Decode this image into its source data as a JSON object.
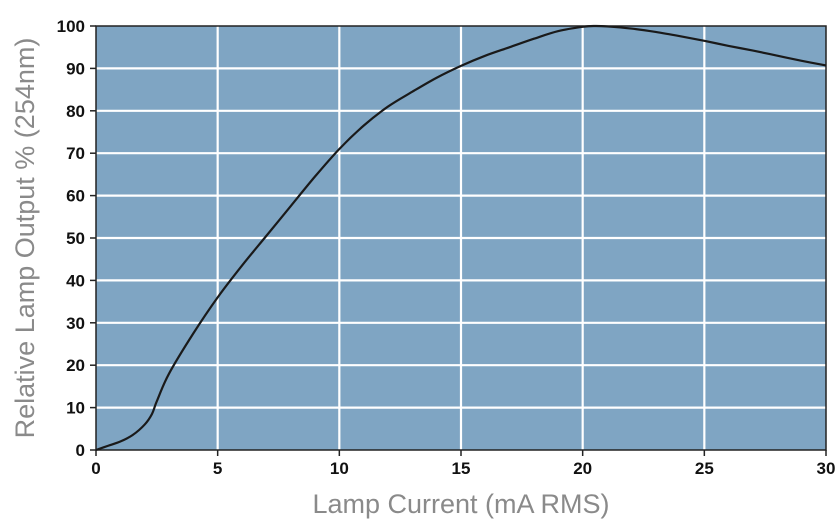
{
  "chart_data": {
    "type": "line",
    "title": "",
    "xlabel": "Lamp Current (mA RMS)",
    "ylabel": "Relative Lamp Output % (254nm)",
    "xlim": [
      0,
      30
    ],
    "ylim": [
      0,
      100
    ],
    "xticks": [
      0,
      5,
      10,
      15,
      20,
      25,
      30
    ],
    "yticks": [
      0,
      10,
      20,
      30,
      40,
      50,
      60,
      70,
      80,
      90,
      100
    ],
    "grid": true,
    "legend": "none",
    "colors": {
      "plot_background": "#7fa5c3",
      "grid": "#ffffff",
      "line": "#1a1a1a",
      "axis_title": "#8a8a8a",
      "tick_label": "#111111"
    },
    "series": [
      {
        "x": [
          0,
          0.5,
          1,
          1.5,
          2,
          2.3,
          2.5,
          3,
          4,
          5,
          6,
          7,
          8,
          9,
          10,
          11,
          12,
          13,
          14,
          15,
          16,
          17,
          18,
          19,
          20,
          20.5,
          21,
          22,
          23,
          24,
          25,
          26,
          27,
          28,
          29,
          30
        ],
        "values": [
          0,
          1,
          2,
          3.5,
          6,
          8.5,
          11.5,
          18,
          27.5,
          36,
          43.5,
          50.5,
          57.5,
          64.5,
          71,
          76.5,
          81,
          84.5,
          87.8,
          90.6,
          93,
          95,
          97,
          98.8,
          99.8,
          100,
          99.9,
          99.4,
          98.6,
          97.6,
          96.5,
          95.3,
          94.2,
          93,
          91.8,
          90.7
        ]
      }
    ]
  }
}
